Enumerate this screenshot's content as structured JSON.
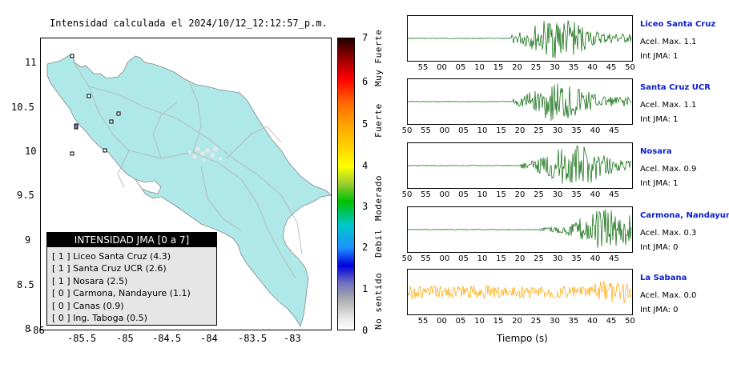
{
  "map": {
    "title": "Intensidad calculada el 2024/10/12_12:12:57_p.m.",
    "x_ticks": [
      "-86",
      "-85.5",
      "-85",
      "-84.5",
      "-84",
      "-83.5",
      "-83"
    ],
    "y_ticks": [
      "11",
      "10.5",
      "10",
      "9.5",
      "9",
      "8.5",
      "8"
    ],
    "land_color": "#aee8e8",
    "legend": {
      "title": "INTENSIDAD JMA [0 a 7]",
      "items": [
        "[ 1 ]  Liceo Santa Cruz (4.3)",
        "[ 1 ]  Santa Cruz UCR (2.6)",
        "[ 1 ]  Nosara (2.5)",
        "[ 0 ]  Carmona, Nandayure (1.1)",
        "[ 0 ]  Canas (0.9)",
        "[ 0 ]  Ing. Taboga (0.5)"
      ]
    }
  },
  "colorbar": {
    "ticks": [
      "7",
      "6",
      "5",
      "4",
      "3",
      "2",
      "1",
      "0"
    ],
    "categories": [
      "Muy Fuerte",
      "Fuerte",
      "Moderado",
      "Debil",
      "No sentido"
    ]
  },
  "chart_data": {
    "type": "line",
    "xlabel": "Tiempo (s)",
    "stations": [
      {
        "name": "Liceo Santa Cruz",
        "accel": "Acel. Max. 1.1",
        "int": "Int JMA: 1",
        "color": "#006400",
        "ticks": [
          "55",
          "00",
          "05",
          "10",
          "15",
          "20",
          "25",
          "30",
          "35",
          "40",
          "45",
          "50"
        ]
      },
      {
        "name": "Santa Cruz UCR",
        "accel": "Acel. Max. 1.1",
        "int": "Int JMA: 1",
        "color": "#006400",
        "ticks": [
          "50",
          "55",
          "00",
          "05",
          "10",
          "15",
          "20",
          "25",
          "30",
          "35",
          "40",
          "45"
        ]
      },
      {
        "name": "Nosara",
        "accel": "Acel. Max. 0.9",
        "int": "Int JMA: 1",
        "color": "#006400",
        "ticks": [
          "50",
          "55",
          "00",
          "05",
          "10",
          "15",
          "20",
          "25",
          "30",
          "35",
          "40",
          "45"
        ]
      },
      {
        "name": "Carmona, Nandayure",
        "accel": "Acel. Max. 0.3",
        "int": "Int JMA: 0",
        "color": "#006400",
        "ticks": [
          "50",
          "55",
          "00",
          "05",
          "10",
          "15",
          "20",
          "25",
          "30",
          "35",
          "40",
          "45"
        ]
      },
      {
        "name": "La Sabana",
        "accel": "Acel. Max. 0.0",
        "int": "Int JMA: 0",
        "color": "#ffa500",
        "ticks": [
          "55",
          "00",
          "05",
          "10",
          "15",
          "20",
          "25",
          "30",
          "35",
          "40",
          "45",
          "50"
        ]
      }
    ]
  }
}
